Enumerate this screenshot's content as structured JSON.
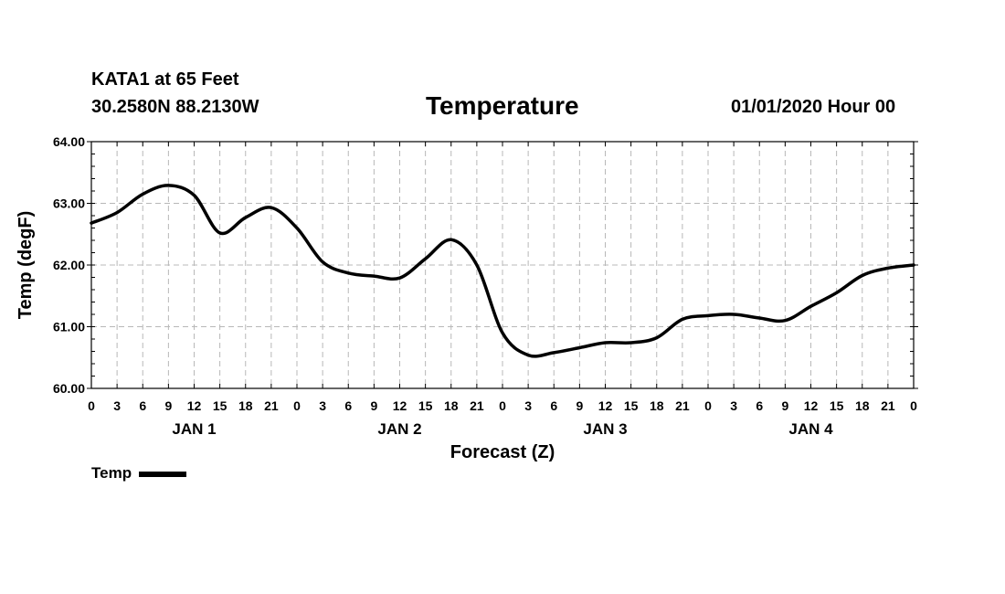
{
  "header": {
    "station": "KATA1 at 65 Feet",
    "coords": "30.2580N 88.2130W",
    "title": "Temperature",
    "date": "01/01/2020 Hour 00"
  },
  "chart_data": {
    "type": "line",
    "title": "Temperature",
    "xlabel": "Forecast (Z)",
    "ylabel": "Temp (degF)",
    "ylim": [
      60.0,
      64.0
    ],
    "xlim": [
      0,
      96
    ],
    "yticks": [
      "60.00",
      "61.00",
      "62.00",
      "63.00",
      "64.00"
    ],
    "ytick_values": [
      60,
      61,
      62,
      63,
      64
    ],
    "xtick_labels": [
      "0",
      "3",
      "6",
      "9",
      "12",
      "15",
      "18",
      "21",
      "0",
      "3",
      "6",
      "9",
      "12",
      "15",
      "18",
      "21",
      "0",
      "3",
      "6",
      "9",
      "12",
      "15",
      "18",
      "21",
      "0",
      "3",
      "6",
      "9",
      "12",
      "15",
      "18",
      "21",
      "0"
    ],
    "day_labels": [
      "JAN 1",
      "JAN 2",
      "JAN 3",
      "JAN 4"
    ],
    "grid": true,
    "legend": "bottom-left",
    "series": [
      {
        "name": "Temp",
        "color": "#000000",
        "x": [
          0,
          3,
          6,
          9,
          12,
          15,
          18,
          21,
          24,
          27,
          30,
          33,
          36,
          39,
          42,
          45,
          48,
          51,
          54,
          57,
          60,
          63,
          66,
          69,
          72,
          75,
          78,
          81,
          84,
          87,
          90,
          93,
          96
        ],
        "values": [
          62.68,
          62.85,
          63.15,
          63.29,
          63.13,
          62.52,
          62.77,
          62.93,
          62.6,
          62.05,
          61.87,
          61.82,
          61.79,
          62.1,
          62.41,
          62.0,
          60.9,
          60.54,
          60.58,
          60.66,
          60.74,
          60.74,
          60.82,
          61.12,
          61.18,
          61.2,
          61.14,
          61.1,
          61.33,
          61.55,
          61.83,
          61.95,
          62.0
        ]
      }
    ]
  },
  "legend": {
    "label": "Temp"
  }
}
